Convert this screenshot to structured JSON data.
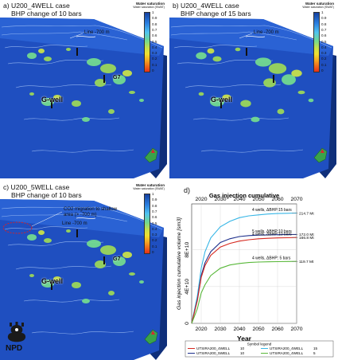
{
  "panels": [
    {
      "id": "a",
      "label": "a) U200_4WELL  case",
      "sublabel": "BHP change of 10 bars",
      "line_text": "Line -700 m",
      "wells": [
        "G-well",
        "G7"
      ],
      "extra_annotation": ""
    },
    {
      "id": "b",
      "label": "b) U200_4WELL  case",
      "sublabel": "BHP change of 15 bars",
      "line_text": "Line -700 m",
      "wells": [
        "G-well"
      ],
      "extra_annotation": ""
    },
    {
      "id": "c",
      "label": "c) U200_5WELL  case",
      "sublabel": "BHP change of 10 bars",
      "line_text": "Line -700 m",
      "wells": [
        "G-well",
        "G7"
      ],
      "extra_annotation": "CO2 migration to shallow area (> -700 m)"
    }
  ],
  "colorbar": {
    "title": "Water saturation",
    "subtitle": "Water saturation (SWAT)",
    "ticks": [
      "1",
      "0.9",
      "0.8",
      "0.7",
      "0.6",
      "0.5",
      "0.4",
      "0.3",
      "0.2",
      "0.1",
      "0"
    ]
  },
  "logo": {
    "text": "NPD"
  },
  "chart_panel_label": "d)",
  "chart_data": {
    "type": "line",
    "title": "Gas injection cumulative",
    "xlabel": "Year",
    "ylabel": "Gas injection cumulative volume [sm3]",
    "x_ticks": [
      "2020",
      "2030",
      "2040",
      "2050",
      "2060",
      "2070"
    ],
    "y_ticks": [
      "0",
      "4E+10",
      "8E+10"
    ],
    "xlim": [
      2015,
      2070
    ],
    "ylim": [
      0,
      130000000000
    ],
    "series": [
      {
        "name": "UTSIRA200_4WELL",
        "legend_value": "15",
        "color": "#37b6e6",
        "x": [
          2015,
          2018,
          2020,
          2022,
          2025,
          2030,
          2035,
          2040,
          2045,
          2050,
          2055,
          2060,
          2065,
          2070
        ],
        "y": [
          0,
          30000000000,
          60000000000,
          78000000000,
          93000000000,
          105000000000,
          111000000000,
          115000000000,
          117000000000,
          118000000000,
          119000000000,
          119500000000,
          119800000000,
          120000000000
        ],
        "annotation": "4 wells, ΔBHP:15 bars",
        "end_label": "214.7 Mt"
      },
      {
        "name": "UTSIRA200_5WELL",
        "legend_value": "10",
        "color": "#1d2f8c",
        "x": [
          2015,
          2018,
          2020,
          2022,
          2025,
          2030,
          2035,
          2040,
          2045,
          2050,
          2055,
          2060,
          2065,
          2070
        ],
        "y": [
          0,
          26000000000,
          52000000000,
          66000000000,
          78000000000,
          88000000000,
          92000000000,
          94500000000,
          95500000000,
          96000000000,
          96300000000,
          96500000000,
          96600000000,
          96700000000
        ],
        "annotation": "5 wells, ΔBHP:10 bars",
        "end_label": "172.0 Mt"
      },
      {
        "name": "UTSIRA200_4WELL",
        "legend_value": "10",
        "color": "#d6281f",
        "x": [
          2015,
          2018,
          2020,
          2022,
          2025,
          2030,
          2035,
          2040,
          2045,
          2050,
          2055,
          2060,
          2065,
          2070
        ],
        "y": [
          0,
          25000000000,
          50000000000,
          63000000000,
          74000000000,
          83000000000,
          87000000000,
          89500000000,
          91000000000,
          92000000000,
          92600000000,
          93000000000,
          93200000000,
          93400000000
        ],
        "annotation": "4 wells, ΔBHP:10 bars",
        "end_label": "166.8 Mt"
      },
      {
        "name": "UTSIRA200_4WELL",
        "legend_value": "5",
        "color": "#59b83a",
        "x": [
          2015,
          2018,
          2020,
          2022,
          2025,
          2030,
          2035,
          2040,
          2045,
          2050,
          2055,
          2060,
          2065,
          2070
        ],
        "y": [
          0,
          16000000000,
          33000000000,
          42000000000,
          52000000000,
          60000000000,
          63500000000,
          65200000000,
          66200000000,
          66700000000,
          67000000000,
          67200000000,
          67300000000,
          67400000000
        ],
        "annotation": "4 wells, ΔBHP: 5 bars",
        "end_label": "119.7 Mt"
      }
    ],
    "legend": {
      "title": "Symbol legend",
      "entries": [
        {
          "name": "UTSIRA200_4WELL",
          "value": "10",
          "color": "#d6281f"
        },
        {
          "name": "UTSIRA200_4WELL",
          "value": "15",
          "color": "#37b6e6"
        },
        {
          "name": "UTSIRA200_5WELL",
          "value": "10",
          "color": "#1d2f8c"
        },
        {
          "name": "UTSIRA200_4WELL",
          "value": "5",
          "color": "#59b83a"
        }
      ]
    },
    "grid": true
  }
}
